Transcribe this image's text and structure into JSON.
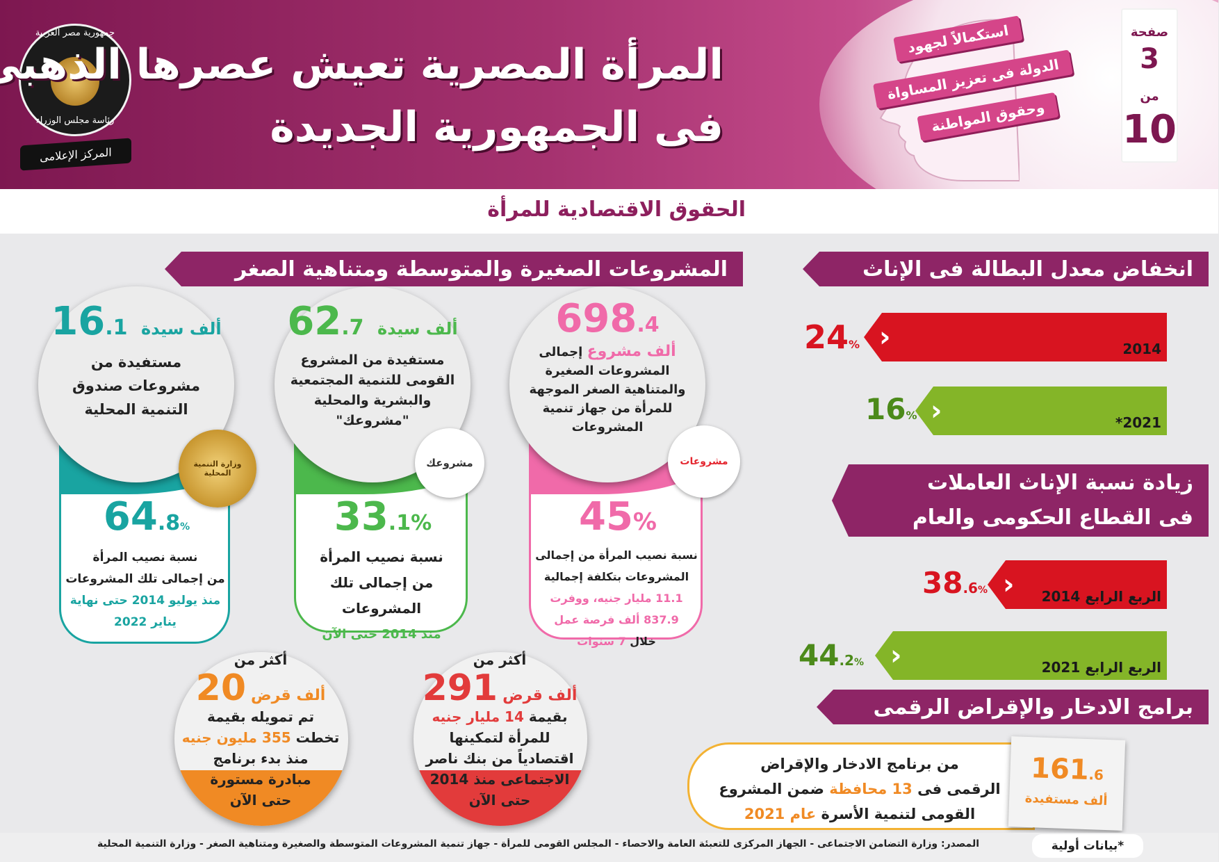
{
  "header": {
    "title_line1": "المرأة المصرية تعيش عصرها الذهبى",
    "title_line2": "فى الجمهورية الجديدة",
    "ribbon": [
      "استكمالاً لجهود",
      "الدولة فى تعزيز المساواة",
      "وحقوق المواطنة"
    ],
    "page_label": "صفحة",
    "page_current": "3",
    "page_of": "من",
    "page_total": "10",
    "logo": {
      "ring_top": "جمهورية مصر العربية",
      "ring_bottom": "رئاسة مجلس الوزراء",
      "banner": "المركز الإعلامى"
    },
    "colors": {
      "primary": "#8e2566",
      "accent": "#d54589"
    }
  },
  "subtitle": "الحقوق الاقتصادية للمرأة",
  "unemployment": {
    "heading": "انخفاض معدل البطالة فى الإناث",
    "bars": [
      {
        "year": "2014",
        "value": "24",
        "unit": "%",
        "color": "#d81420"
      },
      {
        "year": "2021*",
        "value": "16",
        "unit": "%",
        "color": "#84b528"
      }
    ]
  },
  "workers": {
    "heading_line1": "زيادة نسبة الإناث العاملات",
    "heading_line2": "فى القطاع الحكومى والعام",
    "bars": [
      {
        "year": "الربع الرابع 2014",
        "value": "38",
        "decimal": ".6",
        "unit": "%",
        "color": "#d81420"
      },
      {
        "year": "الربع الرابع 2021",
        "value": "44",
        "decimal": ".2",
        "unit": "%",
        "color": "#84b528"
      }
    ]
  },
  "savings": {
    "heading": "برامج الادخار والإقراض الرقمى",
    "value": "161",
    "decimal": ".6",
    "unit": "ألف مستفيدة",
    "text_line1": "من برنامج الادخار والإقراض",
    "text_line2_a": "الرقمى فى",
    "text_line2_num": "13 محافظة",
    "text_line2_b": "ضمن المشروع",
    "text_line3_a": "القومى لتنمية الأسرة",
    "text_line3_year": "عام 2021"
  },
  "sme": {
    "heading": "المشروعات الصغيرة والمتوسطة ومتناهية الصغر",
    "cards": [
      {
        "color": "#f06aa9",
        "top_value": "698",
        "top_decimal": ".4",
        "top_unit": "ألف مشروع",
        "top_lines": [
          "إجمالى",
          "المشروعات الصغيرة",
          "والمتناهية الصغر الموجهة",
          "للمرأة من جهاز تنمية",
          "المشروعات"
        ],
        "badge": "مشروعات",
        "pct": "45",
        "pct_unit": "%",
        "bottom_lines": [
          "نسبة نصيب المرأة من إجمالى",
          "المشروعات بتكلفة إجمالية"
        ],
        "bottom_hl1": "11.1 مليار جنيه، ووفرت",
        "bottom_hl2": "837.9 ألف فرصة عمل",
        "bottom_last_a": "خلال",
        "bottom_last_hl": "7 سنوات"
      },
      {
        "color": "#4cb84c",
        "top_value": "62",
        "top_decimal": ".7",
        "top_unit": "ألف سيدة",
        "top_lines": [
          "مستفيدة من المشروع",
          "القومى للتنمية المجتمعية",
          "والبشرية والمحلية",
          "\"مشروعك\""
        ],
        "badge": "مشروعك",
        "pct": "33",
        "pct_decimal": ".1",
        "pct_unit": "%",
        "bottom_lines": [
          "نسبة نصيب المرأة",
          "من إجمالى تلك",
          "المشروعات"
        ],
        "bottom_hl1": "منذ 2014 حتى الآن"
      },
      {
        "color": "#19a4a1",
        "top_value": "16",
        "top_decimal": ".1",
        "top_unit": "ألف سيدة",
        "top_lines": [
          "مستفيدة من",
          "مشروعات صندوق",
          "التنمية المحلية"
        ],
        "badge": "وزارة التنمية المحلية",
        "pct": "64",
        "pct_decimal": ".8",
        "pct_unit": "%",
        "bottom_lines": [
          "نسبة نصيب المرأة",
          "من إجمالى تلك المشروعات"
        ],
        "bottom_hl1": "منذ يوليو 2014 حتى نهاية",
        "bottom_hl2": "يناير 2022"
      }
    ],
    "loans": [
      {
        "color": "#e23b3b",
        "prefix": "أكثر من",
        "value": "291",
        "unit": "ألف قرض",
        "lines": [
          "بقيمة",
          "14 مليار جنيه",
          "للمرأة لتمكينها",
          "اقتصادياً من بنك ناصر",
          "الاجتماعى منذ 2014",
          "حتى الآن"
        ]
      },
      {
        "color": "#f08a24",
        "prefix": "أكثر من",
        "value": "20",
        "unit": "ألف قرض",
        "lines": [
          "تم تمويله بقيمة",
          "تخطت",
          "355 مليون جنيه",
          "منذ بدء برنامج",
          "مبادرة مستورة",
          "حتى الآن"
        ]
      }
    ]
  },
  "footer": {
    "note": "*بيانات أولية",
    "source": "المصدر: وزارة التضامن الاجتماعى - الجهاز المركزى للتعبئة العامة والاحصاء - المجلس القومى للمرأة - جهاز تنمية المشروعات المتوسطة والصغيرة ومتناهية الصغر - وزارة التنمية المحلية"
  }
}
